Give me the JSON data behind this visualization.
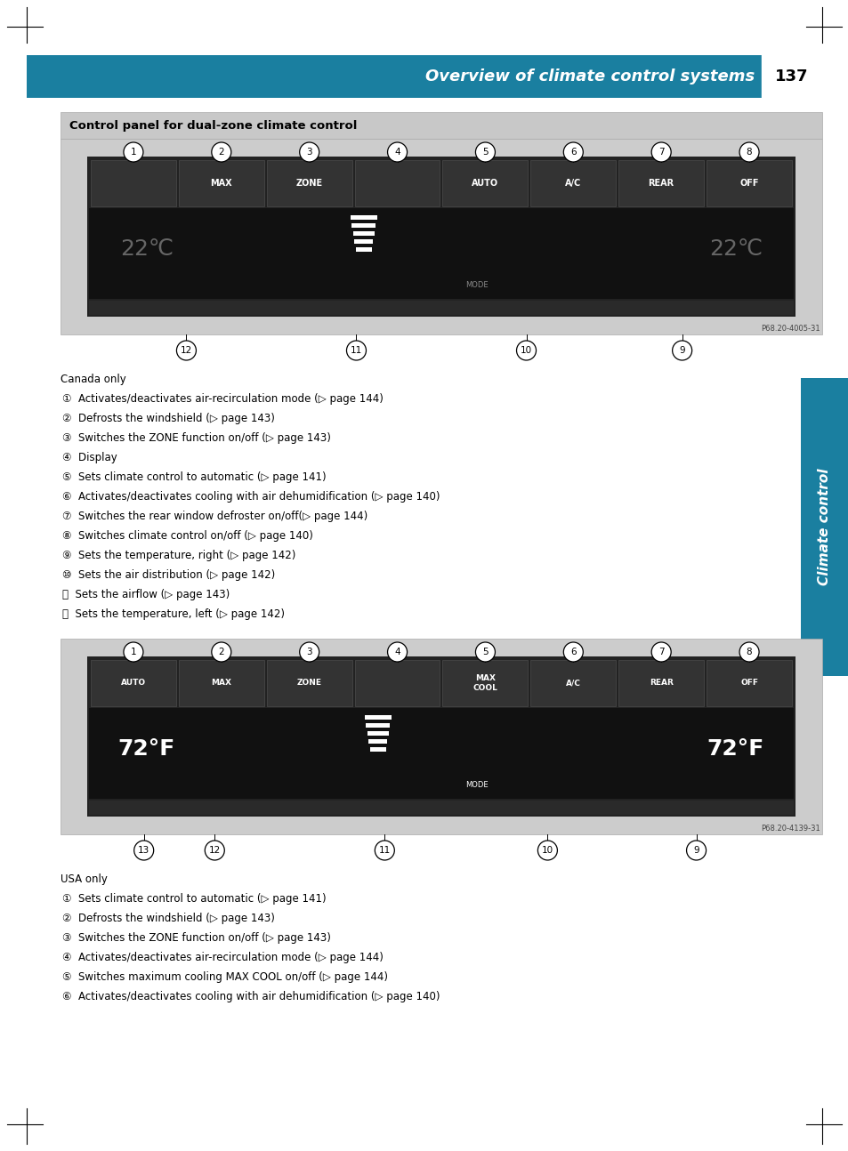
{
  "page_bg": "#ffffff",
  "header_bg": "#1a7fa0",
  "header_text": "Overview of climate control systems",
  "header_page": "137",
  "section_title": "Control panel for dual-zone climate control",
  "section_title_bg": "#c8c8c8",
  "side_bar_color": "#1a7fa0",
  "side_bar_text": "Climate control",
  "canada_label": "Canada only",
  "canada_items": [
    "①  Activates/deactivates air-recirculation mode (▷ page 144)",
    "②  Defrosts the windshield (▷ page 143)",
    "③  Switches the ZONE function on/off (▷ page 143)",
    "④  Display",
    "⑤  Sets climate control to automatic (▷ page 141)",
    "⑥  Activates/deactivates cooling with air dehumidification (▷ page 140)",
    "⑦  Switches the rear window defroster on/off(▷ page 144)",
    "⑧  Switches climate control on/off (▷ page 140)",
    "⑨  Sets the temperature, right (▷ page 142)",
    "⑩  Sets the air distribution (▷ page 142)",
    "⑪  Sets the airflow (▷ page 143)",
    "⑫  Sets the temperature, left (▷ page 142)"
  ],
  "usa_label": "USA only",
  "usa_items": [
    "①  Sets climate control to automatic (▷ page 141)",
    "②  Defrosts the windshield (▷ page 143)",
    "③  Switches the ZONE function on/off (▷ page 143)",
    "④  Activates/deactivates air-recirculation mode (▷ page 144)",
    "⑤  Switches maximum cooling MAX COOL on/off (▷ page 144)",
    "⑥  Activates/deactivates cooling with air dehumidification (▷ page 140)"
  ],
  "corner_color": "#000000",
  "panel_bg": "#cccccc",
  "panel_inner_bg": "#222222",
  "btn_bg": "#333333",
  "btn_edge": "#555555",
  "display_bg": "#111111"
}
